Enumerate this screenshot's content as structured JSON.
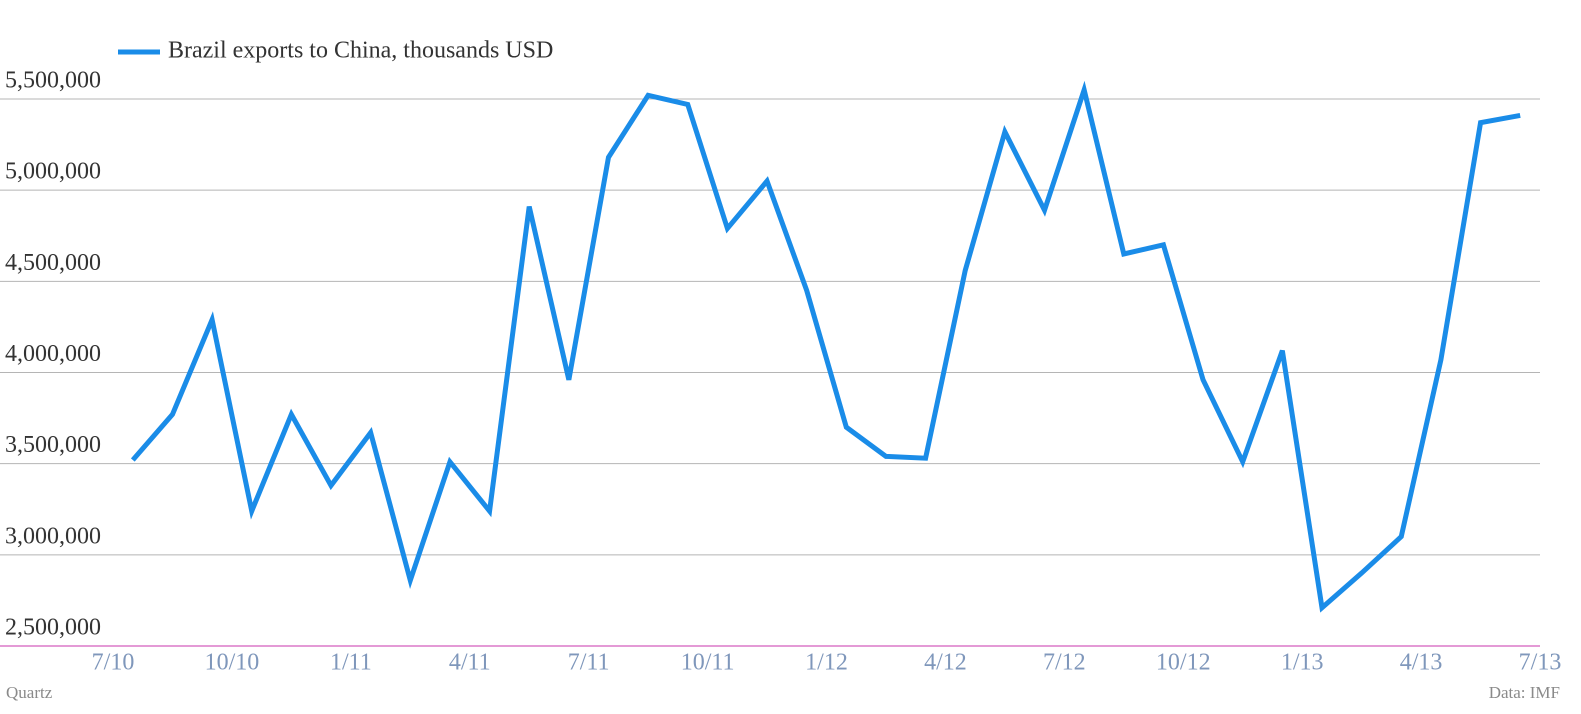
{
  "chart_data": {
    "type": "line",
    "legend_position": "top-left",
    "x": [
      0.5,
      1.5,
      2.5,
      3.5,
      4.5,
      5.5,
      6.5,
      7.5,
      8.5,
      9.5,
      10.5,
      11.5,
      12.5,
      13.5,
      14.5,
      15.5,
      16.5,
      17.5,
      18.5,
      19.5,
      20.5,
      21.5,
      22.5,
      23.5,
      24.5,
      25.5,
      26.5,
      27.5,
      28.5,
      29.5,
      30.5,
      31.5,
      32.5,
      33.5,
      34.5,
      35.5
    ],
    "series": [
      {
        "name": "Brazil exports to China, thousands USD",
        "color": "#1a8ce8",
        "values": [
          3520000,
          3770000,
          4290000,
          3240000,
          3770000,
          3380000,
          3670000,
          2860000,
          3510000,
          3240000,
          4910000,
          3960000,
          5180000,
          5520000,
          5470000,
          4790000,
          5050000,
          4450000,
          3700000,
          3540000,
          3530000,
          4560000,
          5320000,
          4890000,
          5550000,
          4650000,
          4700000,
          3960000,
          3510000,
          4120000,
          2710000,
          2900000,
          3100000,
          4070000,
          5370000,
          5410000
        ]
      }
    ],
    "xlim": [
      0,
      36
    ],
    "xticks": [
      {
        "value": 0,
        "label": "7/10"
      },
      {
        "value": 3,
        "label": "10/10"
      },
      {
        "value": 6,
        "label": "1/11"
      },
      {
        "value": 9,
        "label": "4/11"
      },
      {
        "value": 12,
        "label": "7/11"
      },
      {
        "value": 15,
        "label": "10/11"
      },
      {
        "value": 18,
        "label": "1/12"
      },
      {
        "value": 21,
        "label": "4/12"
      },
      {
        "value": 24,
        "label": "7/12"
      },
      {
        "value": 27,
        "label": "10/12"
      },
      {
        "value": 30,
        "label": "1/13"
      },
      {
        "value": 33,
        "label": "4/13"
      },
      {
        "value": 36,
        "label": "7/13"
      }
    ],
    "ylim": [
      2500000,
      5500000
    ],
    "yticks": [
      {
        "value": 2500000,
        "label": "2,500,000"
      },
      {
        "value": 3000000,
        "label": "3,000,000"
      },
      {
        "value": 3500000,
        "label": "3,500,000"
      },
      {
        "value": 4000000,
        "label": "4,000,000"
      },
      {
        "value": 4500000,
        "label": "4,500,000"
      },
      {
        "value": 5000000,
        "label": "5,000,000"
      },
      {
        "value": 5500000,
        "label": "5,500,000"
      }
    ],
    "grid": true,
    "credit": "Quartz",
    "source": "Data: IMF"
  }
}
